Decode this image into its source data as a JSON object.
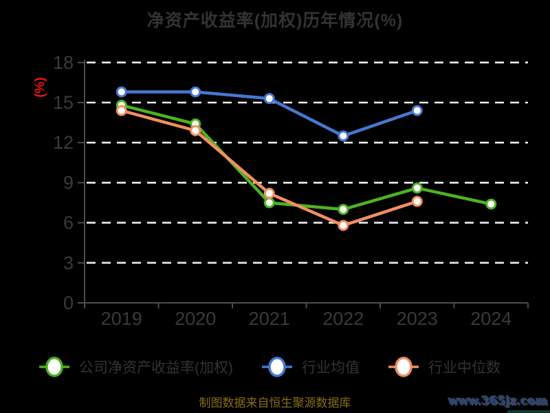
{
  "colors": {
    "background": "#000000",
    "company": "#4db31f",
    "industry_mean": "#4678d2",
    "industry_median": "#f28e62",
    "grid": "#eeeeee",
    "axis": "#4d4d4d",
    "tick_label": "#3a3a3a",
    "title_text": "#333333",
    "legend_text": "#333333",
    "unit_label": "#ee1111",
    "source_note_text": "#8a6c15",
    "watermark_text": "#1d4387"
  },
  "chart_data": {
    "type": "line",
    "title": "净资产收益率(加权)历年情况(%)",
    "categories": [
      "2019",
      "2020",
      "2021",
      "2022",
      "2023",
      "2024"
    ],
    "series": [
      {
        "name": "公司净资产收益率(加权)",
        "color_key": "company",
        "values": [
          14.8,
          13.4,
          7.5,
          7.0,
          8.6,
          7.4
        ]
      },
      {
        "name": "行业均值",
        "color_key": "industry_mean",
        "values": [
          15.8,
          15.8,
          15.3,
          12.5,
          14.4,
          null
        ]
      },
      {
        "name": "行业中位数",
        "color_key": "industry_median",
        "values": [
          14.4,
          12.9,
          8.2,
          5.8,
          7.6,
          null
        ]
      }
    ],
    "xlabel": "",
    "ylabel": "(%)",
    "ylim": [
      0,
      18
    ],
    "y_ticks": [
      0,
      3,
      6,
      9,
      12,
      15,
      18
    ],
    "grid": "horizontal-dashed",
    "legend_position": "bottom",
    "marker": "circle-white-fill"
  },
  "footer": {
    "source_note": "制图数据来自恒生聚源数据库",
    "watermark": "www.365jz.com"
  }
}
